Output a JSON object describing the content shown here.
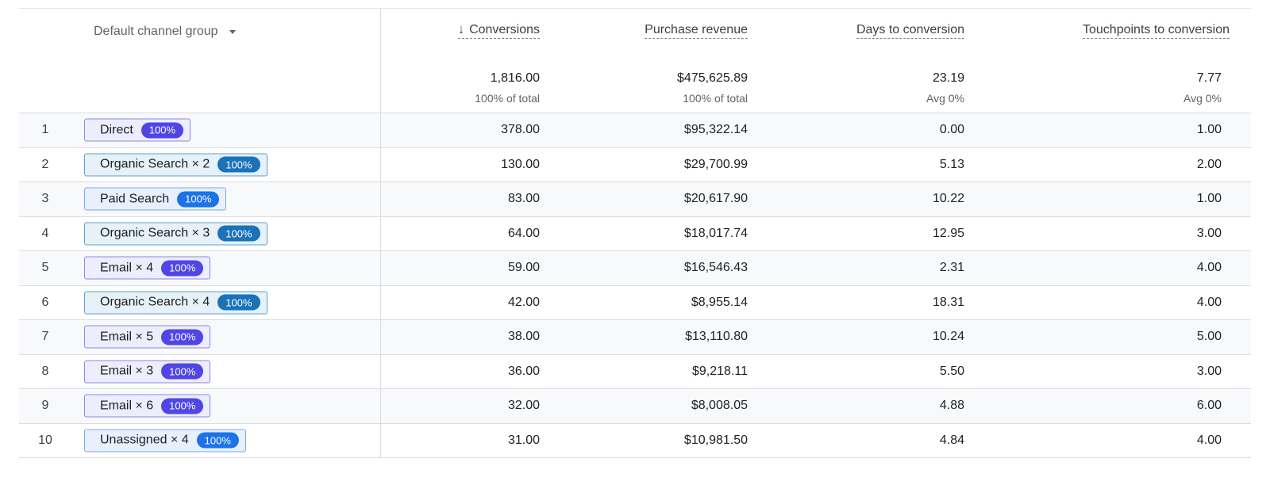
{
  "header": {
    "dimension_label": "Default channel group",
    "columns": [
      {
        "label": "Conversions",
        "total": "1,816.00",
        "sub": "100% of total"
      },
      {
        "label": "Purchase revenue",
        "total": "$475,625.89",
        "sub": "100% of total"
      },
      {
        "label": "Days to conversion",
        "total": "23.19",
        "sub": "Avg 0%"
      },
      {
        "label": "Touchpoints to conversion",
        "total": "7.77",
        "sub": "Avg 0%"
      }
    ],
    "sort_icon": "arrow-down-icon",
    "dropdown_icon": "caret-down-icon"
  },
  "colors": {
    "teal_badge": "#1a73b8",
    "violet_badge": "#4f46e5",
    "blue_badge": "#1a73e8"
  },
  "rows": [
    {
      "rank": "1",
      "path": "Direct",
      "share": "100%",
      "style": "violet",
      "values": [
        "378.00",
        "$95,322.14",
        "0.00",
        "1.00"
      ]
    },
    {
      "rank": "2",
      "path": "Organic Search × 2",
      "share": "100%",
      "style": "teal",
      "values": [
        "130.00",
        "$29,700.99",
        "5.13",
        "2.00"
      ]
    },
    {
      "rank": "3",
      "path": "Paid Search",
      "share": "100%",
      "style": "blue",
      "values": [
        "83.00",
        "$20,617.90",
        "10.22",
        "1.00"
      ]
    },
    {
      "rank": "4",
      "path": "Organic Search × 3",
      "share": "100%",
      "style": "teal",
      "values": [
        "64.00",
        "$18,017.74",
        "12.95",
        "3.00"
      ]
    },
    {
      "rank": "5",
      "path": "Email × 4",
      "share": "100%",
      "style": "violet",
      "values": [
        "59.00",
        "$16,546.43",
        "2.31",
        "4.00"
      ]
    },
    {
      "rank": "6",
      "path": "Organic Search × 4",
      "share": "100%",
      "style": "teal",
      "values": [
        "42.00",
        "$8,955.14",
        "18.31",
        "4.00"
      ]
    },
    {
      "rank": "7",
      "path": "Email × 5",
      "share": "100%",
      "style": "violet",
      "values": [
        "38.00",
        "$13,110.80",
        "10.24",
        "5.00"
      ]
    },
    {
      "rank": "8",
      "path": "Email × 3",
      "share": "100%",
      "style": "violet",
      "values": [
        "36.00",
        "$9,218.11",
        "5.50",
        "3.00"
      ]
    },
    {
      "rank": "9",
      "path": "Email × 6",
      "share": "100%",
      "style": "violet",
      "values": [
        "32.00",
        "$8,008.05",
        "4.88",
        "6.00"
      ]
    },
    {
      "rank": "10",
      "path": "Unassigned × 4",
      "share": "100%",
      "style": "blue",
      "values": [
        "31.00",
        "$10,981.50",
        "4.84",
        "4.00"
      ]
    }
  ]
}
